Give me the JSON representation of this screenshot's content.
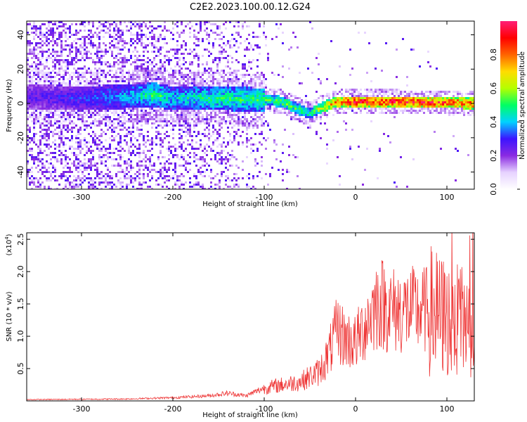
{
  "title": "C2E2.2023.100.00.12.G24",
  "chart_data": [
    {
      "type": "heatmap",
      "xlabel": "Height of straight line (km)",
      "ylabel": "Frequency (Hz)",
      "xlim": [
        -360,
        130
      ],
      "ylim": [
        -50,
        48
      ],
      "xticks": [
        -300,
        -200,
        -100,
        0,
        100
      ],
      "yticks": [
        -40,
        -20,
        0,
        20,
        40
      ],
      "colorbar": {
        "label": "Normalized spectral amplitude",
        "range": [
          0,
          1
        ],
        "ticks": [
          "0.0",
          "0.2",
          "0.4",
          "0.6",
          "0.8"
        ],
        "colors": [
          "#ffffff",
          "#e6d2ff",
          "#8a2be2",
          "#3c14ff",
          "#00d2ff",
          "#00ff64",
          "#b4ff00",
          "#ffdc00",
          "#ff6400",
          "#ff0000",
          "#ff1e78"
        ]
      },
      "ridge": {
        "x": [
          -360,
          -300,
          -250,
          -220,
          -200,
          -150,
          -100,
          -80,
          -60,
          -50,
          -40,
          -20,
          0,
          50,
          130
        ],
        "freq": [
          4,
          3,
          4,
          5,
          3,
          3,
          2,
          1,
          -4,
          -6,
          -3,
          1,
          1,
          1,
          0
        ],
        "peak": [
          0.25,
          0.3,
          0.4,
          0.5,
          0.42,
          0.48,
          0.5,
          0.55,
          0.5,
          0.48,
          0.6,
          0.8,
          0.92,
          0.9,
          0.85
        ]
      },
      "noise_level": [
        {
          "x": -360,
          "v": 0.6
        },
        {
          "x": -200,
          "v": 0.45
        },
        {
          "x": -120,
          "v": 0.3
        },
        {
          "x": -90,
          "v": 0.05
        },
        {
          "x": 130,
          "v": 0.0
        }
      ]
    },
    {
      "type": "line",
      "xlabel": "Height of straight line (km)",
      "ylabel": "SNR (10 * v/v)",
      "yscale_label": "(x10",
      "yscale_exp": "4",
      "yscale_close": ")",
      "xlim": [
        -360,
        130
      ],
      "ylim": [
        0,
        2.6
      ],
      "xticks": [
        -300,
        -200,
        -100,
        0,
        100
      ],
      "yticks": [
        "0.5",
        "1.0",
        "1.5",
        "2.0",
        "2.5"
      ],
      "color": "#ee3333",
      "envelope": [
        {
          "x": -360,
          "y": 0.02
        },
        {
          "x": -250,
          "y": 0.03
        },
        {
          "x": -200,
          "y": 0.05
        },
        {
          "x": -160,
          "y": 0.08
        },
        {
          "x": -140,
          "y": 0.12
        },
        {
          "x": -120,
          "y": 0.08
        },
        {
          "x": -100,
          "y": 0.2
        },
        {
          "x": -80,
          "y": 0.25
        },
        {
          "x": -60,
          "y": 0.3
        },
        {
          "x": -40,
          "y": 0.45
        },
        {
          "x": -30,
          "y": 0.7
        },
        {
          "x": -20,
          "y": 1.1
        },
        {
          "x": -10,
          "y": 0.95
        },
        {
          "x": 0,
          "y": 0.9
        },
        {
          "x": 15,
          "y": 1.3
        },
        {
          "x": 25,
          "y": 1.55
        },
        {
          "x": 40,
          "y": 1.4
        },
        {
          "x": 60,
          "y": 1.4
        },
        {
          "x": 80,
          "y": 1.4
        },
        {
          "x": 95,
          "y": 1.3
        },
        {
          "x": 110,
          "y": 1.2
        },
        {
          "x": 130,
          "y": 1.3
        }
      ]
    }
  ]
}
